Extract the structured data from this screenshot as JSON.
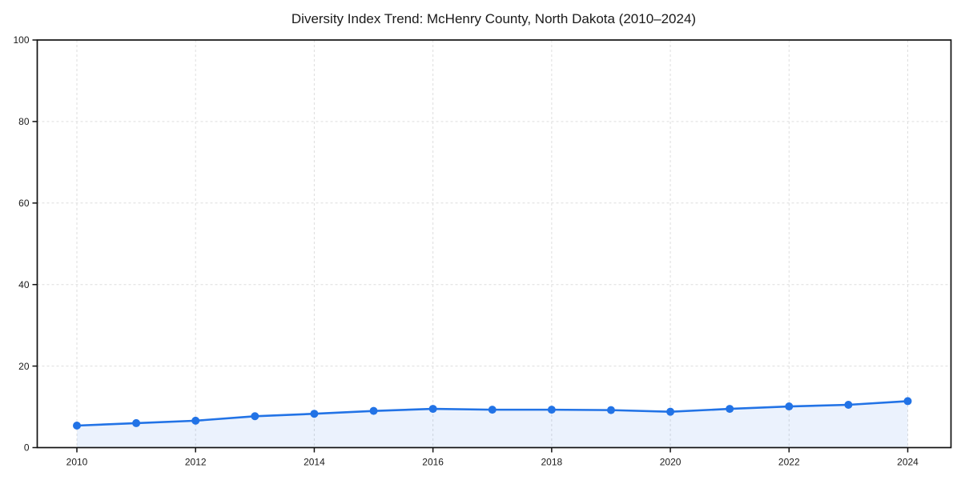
{
  "chart_data": {
    "type": "line",
    "title": "Diversity Index Trend: McHenry County, North Dakota (2010–2024)",
    "x": [
      2010,
      2011,
      2012,
      2013,
      2014,
      2015,
      2016,
      2017,
      2018,
      2019,
      2020,
      2021,
      2022,
      2023,
      2024
    ],
    "series": [
      {
        "name": "Diversity Index",
        "values": [
          5.4,
          6.0,
          6.6,
          7.7,
          8.3,
          9.0,
          9.5,
          9.3,
          9.3,
          9.2,
          8.8,
          9.5,
          10.1,
          10.5,
          11.4
        ]
      }
    ],
    "xlabel": "",
    "ylabel": "",
    "ylim": [
      0,
      100
    ],
    "xticks": [
      2010,
      2012,
      2014,
      2016,
      2018,
      2020,
      2022,
      2024
    ],
    "yticks": [
      0,
      20,
      40,
      60,
      80,
      100
    ],
    "grid": true,
    "grid_style": "dashed",
    "legend_position": "none",
    "marker": "circle",
    "marker_radius": 5,
    "area_fill": true,
    "colors": {
      "line": "#2273e6",
      "area_fill": "#2273e6",
      "area_fill_opacity": 0.09,
      "grid": "#dedede",
      "axis": "#111111",
      "tick_text": "#1a1a1a",
      "background": "#ffffff"
    }
  }
}
